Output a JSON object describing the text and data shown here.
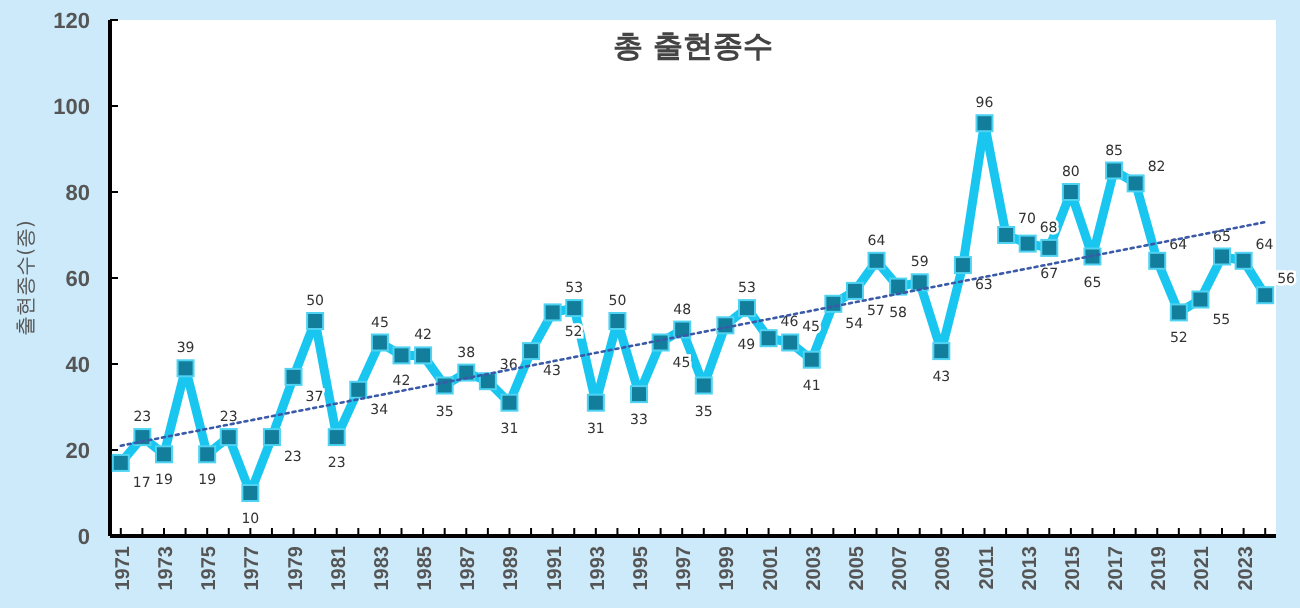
{
  "chart_data": {
    "type": "line",
    "title": "총 출현종수",
    "ylabel": "출현종수(종)",
    "x": [
      1971,
      1972,
      1973,
      1974,
      1975,
      1976,
      1977,
      1978,
      1979,
      1980,
      1981,
      1982,
      1983,
      1984,
      1985,
      1986,
      1987,
      1988,
      1989,
      1990,
      1991,
      1992,
      1993,
      1994,
      1995,
      1996,
      1997,
      1998,
      1999,
      2000,
      2001,
      2002,
      2003,
      2004,
      2005,
      2006,
      2007,
      2008,
      2009,
      2010,
      2011,
      2012,
      2013,
      2014,
      2015,
      2016,
      2017,
      2018,
      2019,
      2020,
      2021,
      2022,
      2023,
      2024
    ],
    "series": [
      {
        "color": "#19c6f0",
        "marker": "square",
        "data_labels": true,
        "values": [
          17,
          23,
          19,
          39,
          19,
          23,
          10,
          23,
          37,
          50,
          23,
          34,
          45,
          42,
          42,
          35,
          38,
          36,
          31,
          43,
          52,
          53,
          31,
          50,
          33,
          45,
          48,
          35,
          49,
          53,
          46,
          45,
          41,
          54,
          57,
          64,
          58,
          59,
          43,
          63,
          96,
          70,
          68,
          67,
          80,
          65,
          85,
          82,
          64,
          52,
          55,
          65,
          64,
          56
        ]
      },
      {
        "type": "line",
        "color": "#3a5aa8",
        "line_style": "dotted",
        "marker": "none",
        "x": [
          1971,
          2024
        ],
        "values": [
          21,
          73
        ]
      }
    ],
    "xlim": [
      1970.5,
      2024.5
    ],
    "xticks": [
      1971,
      {
        "value": 1972,
        "label": null
      },
      1973,
      {
        "value": 1974,
        "label": null
      },
      1975,
      {
        "value": 1976,
        "label": null
      },
      1977,
      {
        "value": 1978,
        "label": null
      },
      1979,
      {
        "value": 1980,
        "label": null
      },
      1981,
      {
        "value": 1982,
        "label": null
      },
      1983,
      {
        "value": 1984,
        "label": null
      },
      1985,
      {
        "value": 1986,
        "label": null
      },
      1987,
      {
        "value": 1988,
        "label": null
      },
      1989,
      {
        "value": 1990,
        "label": null
      },
      1991,
      {
        "value": 1992,
        "label": null
      },
      1993,
      {
        "value": 1994,
        "label": null
      },
      1995,
      {
        "value": 1996,
        "label": null
      },
      1997,
      {
        "value": 1998,
        "label": null
      },
      1999,
      {
        "value": 2000,
        "label": null
      },
      2001,
      {
        "value": 2002,
        "label": null
      },
      2003,
      {
        "value": 2004,
        "label": null
      },
      2005,
      {
        "value": 2006,
        "label": null
      },
      2007,
      {
        "value": 2008,
        "label": null
      },
      2009,
      {
        "value": 2010,
        "label": null
      },
      2011,
      {
        "value": 2012,
        "label": null
      },
      2013,
      {
        "value": 2014,
        "label": null
      },
      2015,
      {
        "value": 2016,
        "label": null
      },
      2017,
      {
        "value": 2018,
        "label": null
      },
      2019,
      {
        "value": 2020,
        "label": null
      },
      2021,
      {
        "value": 2022,
        "label": null
      },
      2023,
      {
        "value": 2024,
        "label": null
      }
    ],
    "ylim": [
      0,
      120
    ],
    "yticks": [
      0,
      20,
      40,
      60,
      80,
      100,
      120
    ],
    "grid": false
  }
}
